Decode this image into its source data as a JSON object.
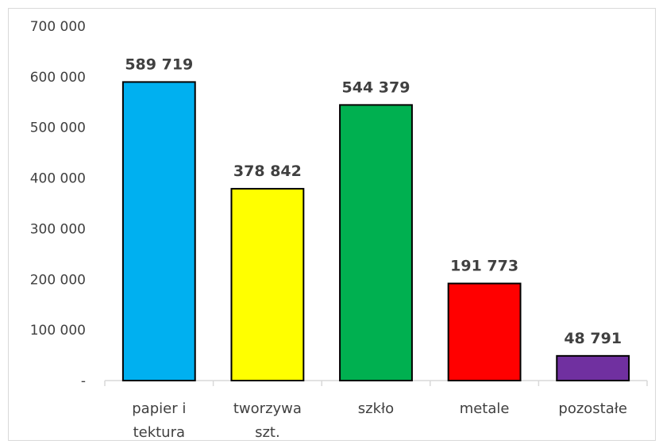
{
  "chart_data": {
    "type": "bar",
    "categories": [
      [
        "papier i",
        "tektura"
      ],
      [
        "tworzywa",
        "szt."
      ],
      [
        "szkło"
      ],
      [
        "metale"
      ],
      [
        "pozostałe"
      ]
    ],
    "values": [
      589719,
      378842,
      544379,
      191773,
      48791
    ],
    "value_labels": [
      "589 719",
      "378 842",
      "544 379",
      "191 773",
      "48 791"
    ],
    "colors": [
      "#00b0f0",
      "#ffff00",
      "#00b050",
      "#ff0000",
      "#7030a0"
    ],
    "bar_outline": "#000000",
    "ylim": [
      0,
      700000
    ],
    "yticks": [
      0,
      100000,
      200000,
      300000,
      400000,
      500000,
      600000,
      700000
    ],
    "ytick_labels": [
      "-",
      "100 000",
      "200 000",
      "300 000",
      "400 000",
      "500 000",
      "600 000",
      "700 000"
    ],
    "grid": false,
    "legend": "none",
    "title": "",
    "xlabel": "",
    "ylabel": ""
  }
}
